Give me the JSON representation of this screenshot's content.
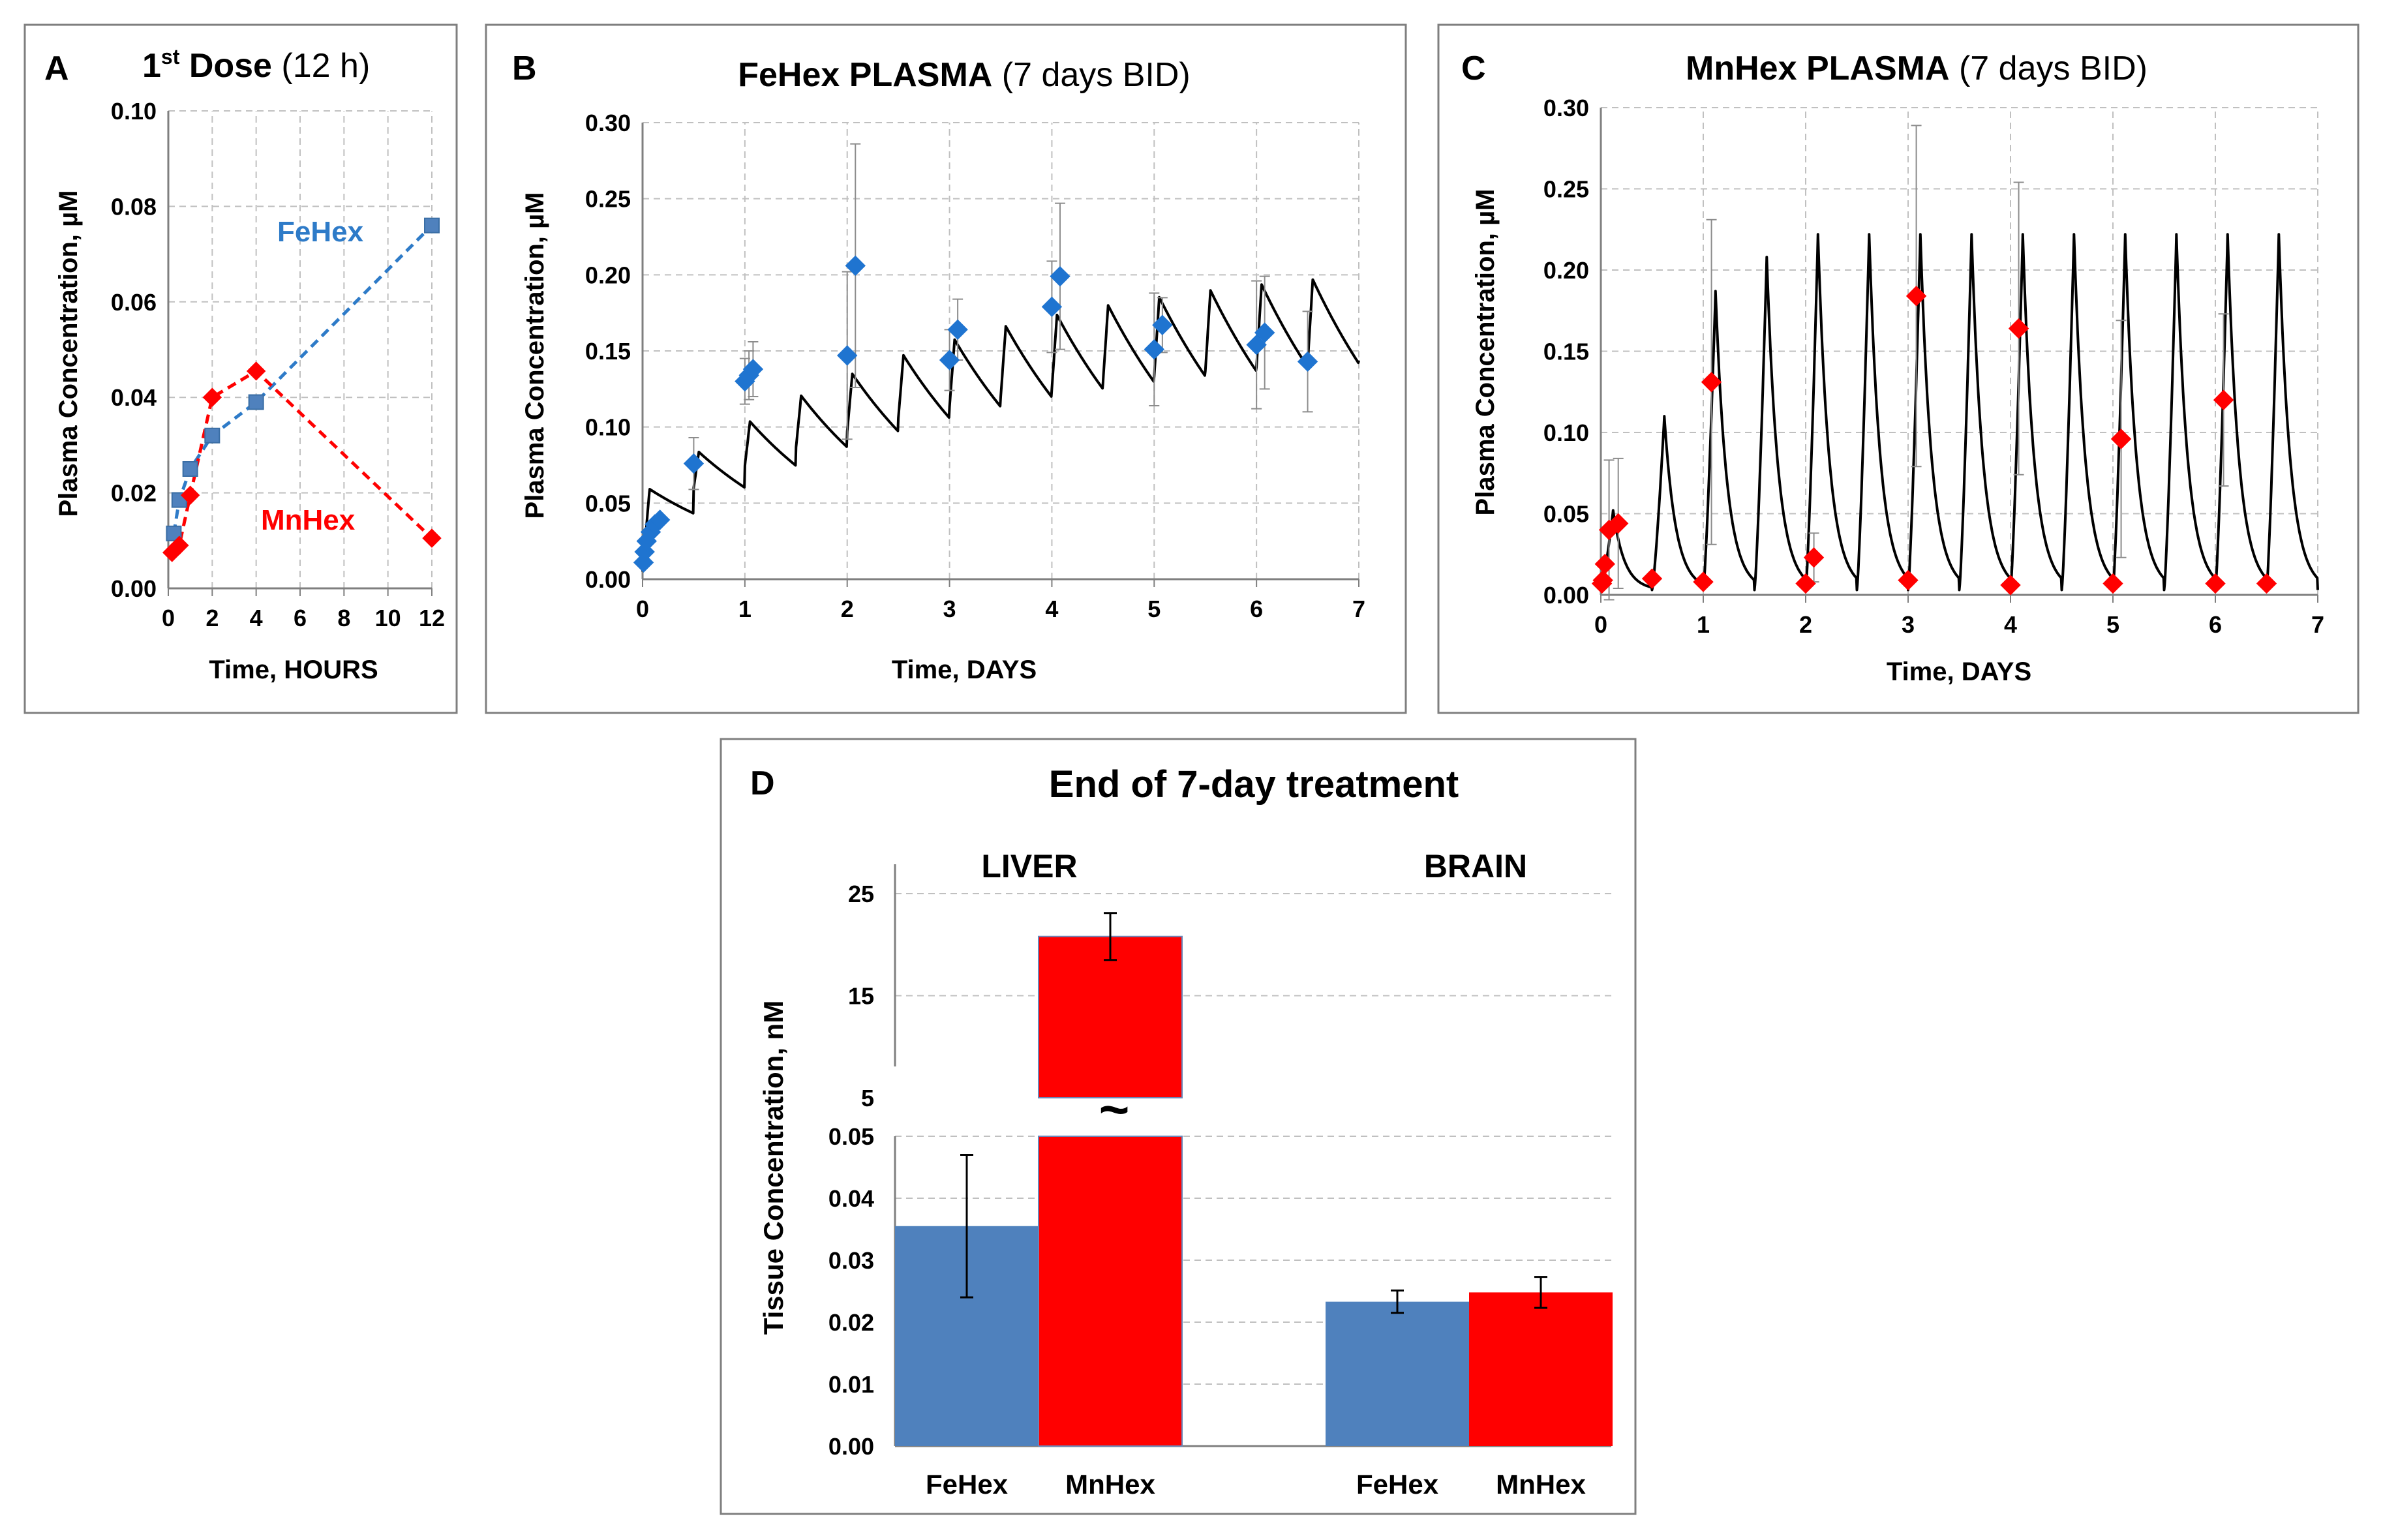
{
  "colors": {
    "fehex": "#4f81bd",
    "fehex_light": "#2e7bc8",
    "mnhex": "#ff0000",
    "model": "#000000",
    "grid": "#c0c0c0",
    "frame": "#7f7f7f"
  },
  "chart_data": [
    {
      "panel": "A",
      "type": "line",
      "title_bold": "1",
      "title_sup": "st",
      "title_bold_rest": " Dose",
      "title_plain": " (12 h)",
      "xlabel": "Time, HOURS",
      "ylabel": "Plasma Concentration, µM",
      "xlim": [
        0,
        12
      ],
      "ylim": [
        0,
        0.1
      ],
      "x_ticks": [
        "0",
        "2",
        "4",
        "6",
        "8",
        "10",
        "12"
      ],
      "y_ticks": [
        "0.00",
        "0.02",
        "0.04",
        "0.06",
        "0.08",
        "0.10"
      ],
      "series": [
        {
          "name": "FeHex",
          "label": "FeHex",
          "color": "#4f81bd",
          "marker": "square",
          "x": [
            0.25,
            0.5,
            1,
            2,
            4,
            12
          ],
          "y": [
            0.0115,
            0.0185,
            0.025,
            0.032,
            0.039,
            0.076
          ]
        },
        {
          "name": "MnHex",
          "label": "MnHex",
          "color": "#ff0000",
          "marker": "diamond",
          "x": [
            0.17,
            0.5,
            1,
            2,
            4,
            12
          ],
          "y": [
            0.0075,
            0.009,
            0.0195,
            0.04,
            0.0455,
            0.0105
          ]
        }
      ]
    },
    {
      "panel": "B",
      "type": "scatter",
      "title_bold": "FeHex PLASMA",
      "title_plain": " (7 days BID)",
      "xlabel": "Time, DAYS",
      "ylabel": "Plasma Concentration, µM",
      "xlim": [
        0,
        7
      ],
      "ylim": [
        0,
        0.3
      ],
      "x_ticks": [
        "0",
        "1",
        "2",
        "3",
        "4",
        "5",
        "6",
        "7"
      ],
      "y_ticks": [
        "0.00",
        "0.05",
        "0.10",
        "0.15",
        "0.20",
        "0.25",
        "0.30"
      ],
      "points": {
        "x": [
          0.01,
          0.02,
          0.04,
          0.08,
          0.12,
          0.17,
          0.5,
          1.0,
          1.04,
          1.08,
          2.0,
          2.08,
          3.0,
          3.08,
          4.0,
          4.08,
          5.0,
          5.08,
          6.0,
          6.08,
          6.5
        ],
        "y": [
          0.011,
          0.018,
          0.025,
          0.031,
          0.036,
          0.039,
          0.076,
          0.13,
          0.134,
          0.138,
          0.147,
          0.206,
          0.144,
          0.164,
          0.179,
          0.199,
          0.151,
          0.167,
          0.154,
          0.162,
          0.143
        ],
        "err": [
          0,
          0,
          0,
          0,
          0,
          0,
          0.017,
          0.015,
          0.016,
          0.018,
          0.055,
          0.08,
          0.02,
          0.02,
          0.03,
          0.048,
          0.037,
          0.018,
          0.042,
          0.037,
          0.033
        ]
      },
      "model": {
        "kind": "bid",
        "base0": 0.06,
        "base_inf": 0.215,
        "rate": 0.33,
        "rise_time": 0.05,
        "decay": 3.5,
        "start": 0.07
      }
    },
    {
      "panel": "C",
      "type": "scatter",
      "title_bold": "MnHex PLASMA",
      "title_plain": " (7 days BID)",
      "xlabel": "Time, DAYS",
      "ylabel": "Plasma Concentration, µM",
      "xlim": [
        0,
        7
      ],
      "ylim": [
        0,
        0.3
      ],
      "x_ticks": [
        "0",
        "1",
        "2",
        "3",
        "4",
        "5",
        "6",
        "7"
      ],
      "y_ticks": [
        "0.00",
        "0.05",
        "0.10",
        "0.15",
        "0.20",
        "0.25",
        "0.30"
      ],
      "points": {
        "x": [
          0.01,
          0.02,
          0.04,
          0.08,
          0.17,
          0.5,
          1.0,
          1.08,
          2.0,
          2.08,
          3.0,
          3.08,
          4.0,
          4.08,
          5.0,
          5.08,
          6.0,
          6.08,
          6.5
        ],
        "y": [
          0.007,
          0.009,
          0.019,
          0.04,
          0.044,
          0.01,
          0.008,
          0.131,
          0.007,
          0.023,
          0.009,
          0.184,
          0.006,
          0.164,
          0.007,
          0.096,
          0.007,
          0.12,
          0.007
        ],
        "err": [
          0,
          0,
          0,
          0.043,
          0.04,
          0,
          0,
          0.1,
          0,
          0.015,
          0,
          0.105,
          0,
          0.09,
          0,
          0.073,
          0,
          0.053,
          0
        ]
      },
      "model": {
        "kind": "pulse",
        "peaks": [
          0.052,
          0.11,
          0.187,
          0.208,
          0.222,
          0.222,
          0.222,
          0.222,
          0.222,
          0.222,
          0.222,
          0.222,
          0.222,
          0.222
        ],
        "rise_time": 0.12,
        "decay": 9.0
      }
    },
    {
      "panel": "D",
      "type": "bar",
      "title": "End of 7-day treatment",
      "ylabel": "Tissue Concentration, nM",
      "groups": [
        "LIVER",
        "BRAIN"
      ],
      "categories": [
        "FeHex",
        "MnHex",
        "FeHex",
        "MnHex"
      ],
      "series_names": [
        "FeHex",
        "MnHex"
      ],
      "values": [
        0.0355,
        20.8,
        0.0233,
        0.0248
      ],
      "errors": [
        0.0115,
        2.3,
        0.0018,
        0.0025
      ],
      "lower_axis": {
        "ylim": [
          0,
          0.05
        ],
        "ticks": [
          "0.00",
          "0.01",
          "0.02",
          "0.03",
          "0.04",
          "0.05"
        ]
      },
      "upper_axis": {
        "ylim": [
          5,
          25
        ],
        "ticks": [
          "5",
          "15",
          "25"
        ]
      },
      "break_symbol": "~"
    }
  ]
}
